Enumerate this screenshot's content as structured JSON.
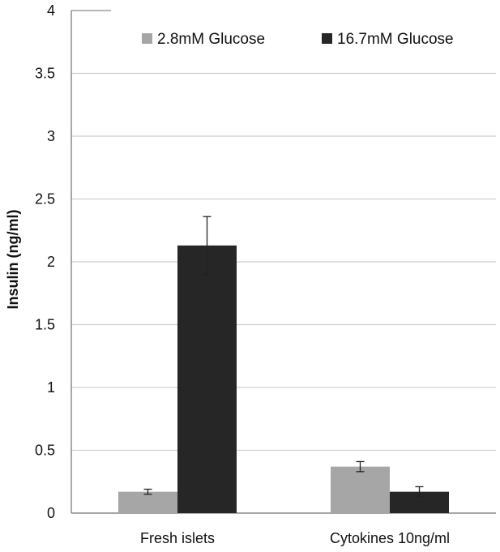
{
  "chart_data": {
    "type": "bar",
    "title": "",
    "xlabel": "",
    "ylabel": "Insulin (ng/ml)",
    "ylim": [
      0,
      4
    ],
    "yticks": [
      "0",
      "0.5",
      "1",
      "1.5",
      "2",
      "2.5",
      "3",
      "3.5",
      "4"
    ],
    "categories": [
      "Fresh islets",
      "Cytokines 10ng/ml"
    ],
    "series": [
      {
        "name": "2.8mM Glucose",
        "color": "#a6a6a6",
        "values": [
          0.17,
          0.37
        ],
        "errors": [
          0.02,
          0.04
        ]
      },
      {
        "name": "16.7mM Glucose",
        "color": "#262626",
        "values": [
          2.13,
          0.17
        ],
        "errors": [
          0.23,
          0.04
        ]
      }
    ],
    "grid": true,
    "legend_position": "top-right"
  }
}
